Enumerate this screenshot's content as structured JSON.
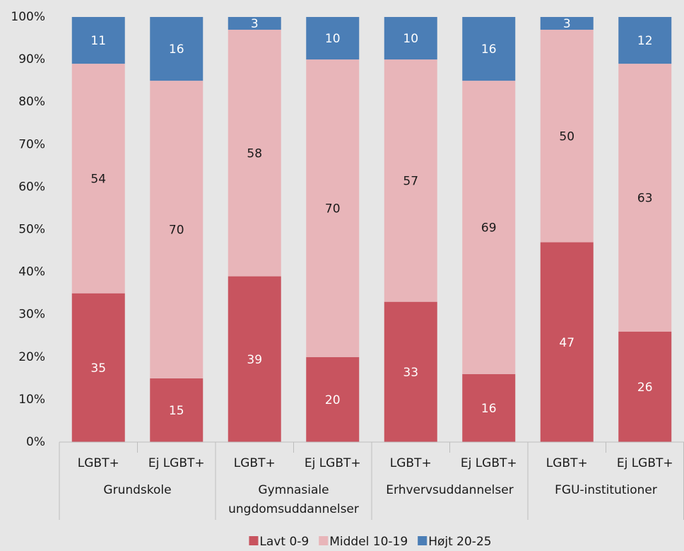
{
  "chart_data": {
    "type": "stacked-bar",
    "groups": [
      {
        "name": "Grundskole",
        "categories": [
          "LGBT+",
          "Ej LGBT+"
        ]
      },
      {
        "name": "Gymnasiale ungdomsuddannelser",
        "categories": [
          "LGBT+",
          "Ej LGBT+"
        ]
      },
      {
        "name": "Erhvervsuddannelser",
        "categories": [
          "LGBT+",
          "Ej LGBT+"
        ]
      },
      {
        "name": "FGU-institutioner",
        "categories": [
          "LGBT+",
          "Ej LGBT+"
        ]
      }
    ],
    "series": [
      {
        "name": "Lavt 0-9",
        "color": "#c8545f",
        "label_color": "#ffffff",
        "values": [
          35,
          15,
          39,
          20,
          33,
          16,
          47,
          26
        ]
      },
      {
        "name": "Middel 10-19",
        "color": "#e8b5b9",
        "label_color": "#1a1a1a",
        "values": [
          54,
          70,
          58,
          70,
          57,
          69,
          50,
          63
        ]
      },
      {
        "name": "Højt 20-25",
        "color": "#4b7eb6",
        "label_color": "#ffffff",
        "values": [
          11,
          16,
          3,
          10,
          10,
          16,
          3,
          12
        ]
      }
    ],
    "ylim": [
      0,
      100
    ],
    "yticks": [
      {
        "value": 0,
        "label": "0%"
      },
      {
        "value": 10,
        "label": "10%"
      },
      {
        "value": 20,
        "label": "20%"
      },
      {
        "value": 30,
        "label": "30%"
      },
      {
        "value": 40,
        "label": "40%"
      },
      {
        "value": 50,
        "label": "50%"
      },
      {
        "value": 60,
        "label": "60%"
      },
      {
        "value": 70,
        "label": "70%"
      },
      {
        "value": 80,
        "label": "80%"
      },
      {
        "value": 90,
        "label": "90%"
      },
      {
        "value": 100,
        "label": "100%"
      }
    ],
    "legend": "bottom"
  }
}
